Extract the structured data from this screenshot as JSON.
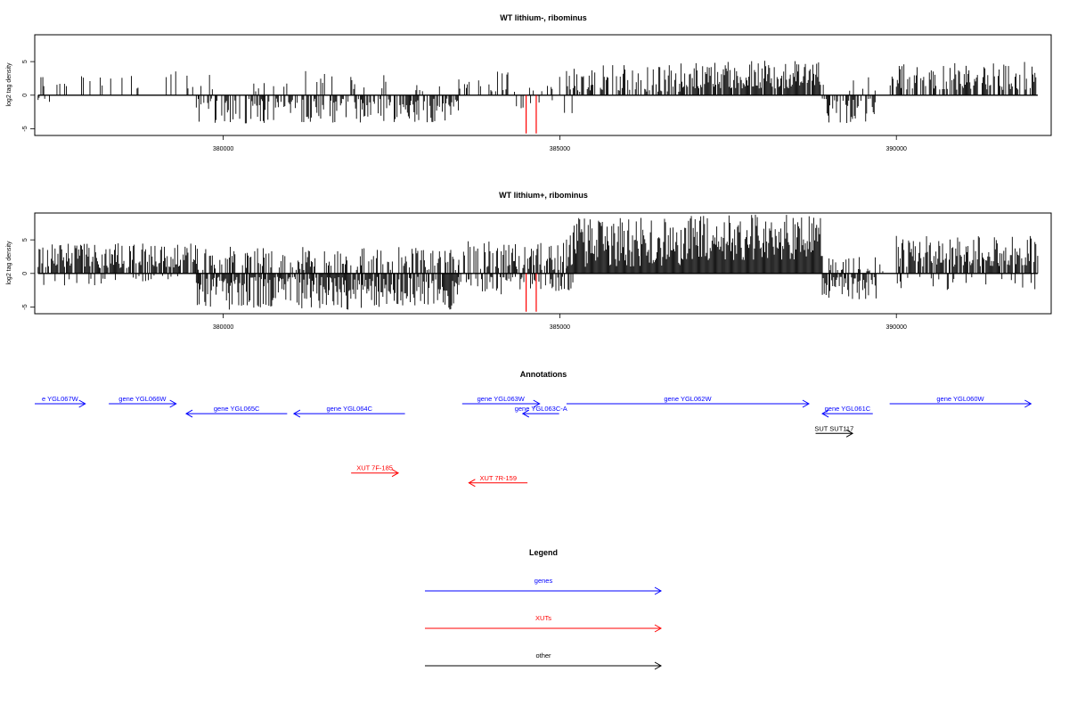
{
  "chart_data": [
    {
      "type": "bar",
      "title": "WT lithium-, ribominus",
      "ylabel": "log2 tag density",
      "xlabel": "",
      "xlim": [
        377200,
        392300
      ],
      "ylim": [
        -6,
        9
      ],
      "yticks": [
        -5,
        0,
        5
      ],
      "xticks": [
        380000,
        385000,
        390000
      ],
      "segments": [
        {
          "from": 377250,
          "to": 379600,
          "sign": 1,
          "density": 0.12,
          "min": 1.0,
          "max": 3.6,
          "seed": 11
        },
        {
          "from": 377250,
          "to": 377450,
          "sign": -1,
          "density": 0.3,
          "min": 0.3,
          "max": 1.8,
          "seed": 12
        },
        {
          "from": 379600,
          "to": 383500,
          "sign": -1,
          "density": 0.55,
          "min": 0.5,
          "max": 4.2,
          "seed": 13
        },
        {
          "from": 379600,
          "to": 383500,
          "sign": 1,
          "density": 0.12,
          "min": 0.5,
          "max": 3.6,
          "seed": 14
        },
        {
          "from": 383500,
          "to": 385100,
          "sign": 1,
          "density": 0.25,
          "min": 0.5,
          "max": 3.8,
          "seed": 15
        },
        {
          "from": 384300,
          "to": 385200,
          "sign": -1,
          "density": 0.15,
          "min": 0.5,
          "max": 2.8,
          "seed": 16
        },
        {
          "from": 385100,
          "to": 386800,
          "sign": 1,
          "density": 0.5,
          "min": 0.5,
          "max": 4.5,
          "seed": 17
        },
        {
          "from": 386800,
          "to": 388900,
          "sign": 1,
          "density": 0.9,
          "min": 1.0,
          "max": 5.2,
          "seed": 18
        },
        {
          "from": 388900,
          "to": 389700,
          "sign": -1,
          "density": 0.6,
          "min": 0.5,
          "max": 4.2,
          "seed": 19
        },
        {
          "from": 388900,
          "to": 390000,
          "sign": 1,
          "density": 0.1,
          "min": 0.5,
          "max": 3.0,
          "seed": 20
        },
        {
          "from": 390000,
          "to": 392100,
          "sign": 1,
          "density": 0.55,
          "min": 0.8,
          "max": 5.0,
          "seed": 21
        }
      ],
      "red_lines": [
        {
          "x": 384500,
          "y": -5.7
        },
        {
          "x": 384650,
          "y": -5.7
        }
      ]
    },
    {
      "type": "bar",
      "title": "WT lithium+, ribominus",
      "ylabel": "log2 tag density",
      "xlabel": "",
      "xlim": [
        377200,
        392300
      ],
      "ylim": [
        -6,
        9
      ],
      "yticks": [
        -5,
        0,
        5
      ],
      "xticks": [
        380000,
        385000,
        390000
      ],
      "segments": [
        {
          "from": 377250,
          "to": 379600,
          "sign": 1,
          "density": 0.7,
          "min": 0.8,
          "max": 4.5,
          "seed": 31
        },
        {
          "from": 377250,
          "to": 379600,
          "sign": -1,
          "density": 0.15,
          "min": 0.3,
          "max": 1.8,
          "seed": 32
        },
        {
          "from": 379600,
          "to": 383500,
          "sign": -1,
          "density": 0.8,
          "min": 0.5,
          "max": 5.4,
          "seed": 33
        },
        {
          "from": 379600,
          "to": 383500,
          "sign": 1,
          "density": 0.45,
          "min": 0.5,
          "max": 4.0,
          "seed": 34
        },
        {
          "from": 383500,
          "to": 385100,
          "sign": 1,
          "density": 0.6,
          "min": 0.5,
          "max": 4.8,
          "seed": 35
        },
        {
          "from": 383500,
          "to": 385200,
          "sign": -1,
          "density": 0.35,
          "min": 0.5,
          "max": 3.2,
          "seed": 36
        },
        {
          "from": 385100,
          "to": 386800,
          "sign": 1,
          "density": 1.0,
          "min": 1.0,
          "max": 8.3,
          "seed": 37
        },
        {
          "from": 386800,
          "to": 388900,
          "sign": 1,
          "density": 1.0,
          "min": 2.0,
          "max": 8.8,
          "seed": 38
        },
        {
          "from": 388900,
          "to": 389700,
          "sign": -1,
          "density": 0.7,
          "min": 0.5,
          "max": 4.0,
          "seed": 39
        },
        {
          "from": 389000,
          "to": 389800,
          "sign": 1,
          "density": 0.3,
          "min": 0.3,
          "max": 2.5,
          "seed": 40
        },
        {
          "from": 390000,
          "to": 392100,
          "sign": 1,
          "density": 0.8,
          "min": 1.0,
          "max": 5.6,
          "seed": 41
        },
        {
          "from": 390000,
          "to": 392100,
          "sign": -1,
          "density": 0.15,
          "min": 0.5,
          "max": 2.5,
          "seed": 42
        }
      ],
      "red_lines": [
        {
          "x": 384500,
          "y": -5.7
        },
        {
          "x": 384650,
          "y": -5.7
        }
      ]
    }
  ],
  "annotations": {
    "title": "Annotations",
    "xlim": [
      377200,
      392300
    ],
    "features": [
      {
        "label": "e YGL067W",
        "start": 377200,
        "end": 377950,
        "strand": "+",
        "color": "blue",
        "row": 0
      },
      {
        "label": "gene YGL066W",
        "start": 378300,
        "end": 379300,
        "strand": "+",
        "color": "blue",
        "row": 0
      },
      {
        "label": "gene YGL065C",
        "start": 379450,
        "end": 380950,
        "strand": "-",
        "color": "blue",
        "row": 1
      },
      {
        "label": "gene YGL064C",
        "start": 381050,
        "end": 382700,
        "strand": "-",
        "color": "blue",
        "row": 1
      },
      {
        "label": "gene YGL063W",
        "start": 383550,
        "end": 384700,
        "strand": "+",
        "color": "blue",
        "row": 0
      },
      {
        "label": "gene YGL063C-A",
        "start": 384450,
        "end": 384990,
        "strand": "-",
        "color": "blue",
        "row": 1
      },
      {
        "label": "gene YGL062W",
        "start": 385100,
        "end": 388700,
        "strand": "+",
        "color": "blue",
        "row": 0
      },
      {
        "label": "gene YGL061C",
        "start": 388900,
        "end": 389650,
        "strand": "-",
        "color": "blue",
        "row": 1
      },
      {
        "label": "gene YGL060W",
        "start": 389900,
        "end": 392000,
        "strand": "+",
        "color": "blue",
        "row": 0
      },
      {
        "label": "SUT SUT117",
        "start": 388800,
        "end": 389350,
        "strand": "+",
        "color": "black",
        "row": 3
      },
      {
        "label": "XUT 7F-185",
        "start": 381900,
        "end": 382600,
        "strand": "+",
        "color": "red",
        "row": 7
      },
      {
        "label": "XUT 7R-159",
        "start": 383650,
        "end": 384520,
        "strand": "-",
        "color": "red",
        "row": 8
      }
    ]
  },
  "legend": {
    "title": "Legend",
    "items": [
      {
        "label": "genes",
        "color": "blue"
      },
      {
        "label": "XUTs",
        "color": "red"
      },
      {
        "label": "other",
        "color": "black"
      }
    ]
  }
}
